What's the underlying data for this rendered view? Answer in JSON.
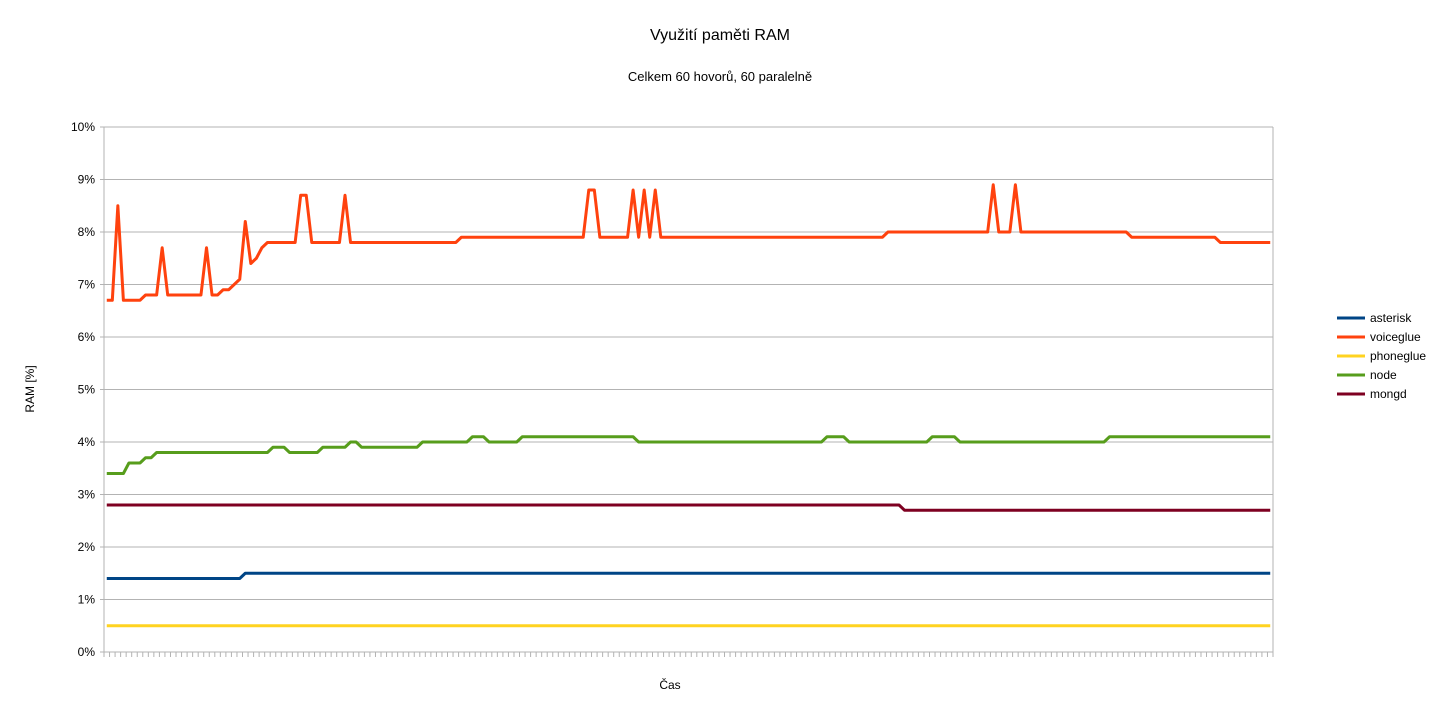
{
  "chart_data": {
    "type": "line",
    "title": "Využití paměti RAM",
    "subtitle": "Celkem 60 hovorů, 60 paralelně",
    "xlabel": "Čas",
    "ylabel": "RAM [%]",
    "ylim": [
      0,
      10
    ],
    "yticks": [
      0,
      1,
      2,
      3,
      4,
      5,
      6,
      7,
      8,
      9,
      10
    ],
    "ytick_labels": [
      "0%",
      "1%",
      "2%",
      "3%",
      "4%",
      "5%",
      "6%",
      "7%",
      "8%",
      "9%",
      "10%"
    ],
    "grid": "horizontal",
    "legend_position": "right",
    "x_count": 211,
    "series": [
      {
        "name": "asterisk",
        "color": "#004586",
        "segments": [
          [
            0,
            1.4
          ],
          [
            24,
            1.4
          ],
          [
            25,
            1.5
          ],
          [
            210,
            1.5
          ]
        ]
      },
      {
        "name": "voiceglue",
        "color": "#ff420e",
        "segments": [
          [
            0,
            6.7
          ],
          [
            1,
            6.7
          ],
          [
            2,
            8.5
          ],
          [
            3,
            6.7
          ],
          [
            6,
            6.7
          ],
          [
            7,
            6.8
          ],
          [
            9,
            6.8
          ],
          [
            10,
            7.7
          ],
          [
            11,
            6.8
          ],
          [
            17,
            6.8
          ],
          [
            18,
            7.7
          ],
          [
            19,
            6.8
          ],
          [
            20,
            6.8
          ],
          [
            21,
            6.9
          ],
          [
            22,
            6.9
          ],
          [
            24,
            7.1
          ],
          [
            25,
            8.2
          ],
          [
            26,
            7.4
          ],
          [
            27,
            7.5
          ],
          [
            28,
            7.7
          ],
          [
            29,
            7.8
          ],
          [
            34,
            7.8
          ],
          [
            35,
            8.7
          ],
          [
            36,
            8.7
          ],
          [
            37,
            7.8
          ],
          [
            42,
            7.8
          ],
          [
            43,
            8.7
          ],
          [
            44,
            7.8
          ],
          [
            63,
            7.8
          ],
          [
            64,
            7.9
          ],
          [
            86,
            7.9
          ],
          [
            87,
            8.8
          ],
          [
            88,
            8.8
          ],
          [
            89,
            7.9
          ],
          [
            94,
            7.9
          ],
          [
            95,
            8.8
          ],
          [
            96,
            7.9
          ],
          [
            97,
            8.8
          ],
          [
            98,
            7.9
          ],
          [
            99,
            8.8
          ],
          [
            100,
            7.9
          ],
          [
            140,
            7.9
          ],
          [
            141,
            8.0
          ],
          [
            159,
            8.0
          ],
          [
            160,
            8.9
          ],
          [
            161,
            8.0
          ],
          [
            163,
            8.0
          ],
          [
            164,
            8.9
          ],
          [
            165,
            8.0
          ],
          [
            184,
            8.0
          ],
          [
            185,
            7.9
          ],
          [
            200,
            7.9
          ],
          [
            201,
            7.8
          ],
          [
            210,
            7.8
          ]
        ]
      },
      {
        "name": "phoneglue",
        "color": "#ffd320",
        "segments": [
          [
            0,
            0.5
          ],
          [
            210,
            0.5
          ]
        ]
      },
      {
        "name": "node",
        "color": "#579d1c",
        "segments": [
          [
            0,
            3.4
          ],
          [
            3,
            3.4
          ],
          [
            4,
            3.6
          ],
          [
            6,
            3.6
          ],
          [
            7,
            3.7
          ],
          [
            8,
            3.7
          ],
          [
            9,
            3.8
          ],
          [
            29,
            3.8
          ],
          [
            30,
            3.9
          ],
          [
            32,
            3.9
          ],
          [
            33,
            3.8
          ],
          [
            38,
            3.8
          ],
          [
            39,
            3.9
          ],
          [
            43,
            3.9
          ],
          [
            44,
            4.0
          ],
          [
            45,
            4.0
          ],
          [
            46,
            3.9
          ],
          [
            56,
            3.9
          ],
          [
            57,
            4.0
          ],
          [
            65,
            4.0
          ],
          [
            66,
            4.1
          ],
          [
            68,
            4.1
          ],
          [
            69,
            4.0
          ],
          [
            74,
            4.0
          ],
          [
            75,
            4.1
          ],
          [
            95,
            4.1
          ],
          [
            96,
            4.0
          ],
          [
            129,
            4.0
          ],
          [
            130,
            4.1
          ],
          [
            133,
            4.1
          ],
          [
            134,
            4.0
          ],
          [
            148,
            4.0
          ],
          [
            149,
            4.1
          ],
          [
            153,
            4.1
          ],
          [
            154,
            4.0
          ],
          [
            180,
            4.0
          ],
          [
            181,
            4.1
          ],
          [
            210,
            4.1
          ]
        ]
      },
      {
        "name": "mongd",
        "color": "#7e0021",
        "segments": [
          [
            0,
            2.8
          ],
          [
            143,
            2.8
          ],
          [
            144,
            2.7
          ],
          [
            210,
            2.7
          ]
        ]
      }
    ]
  }
}
